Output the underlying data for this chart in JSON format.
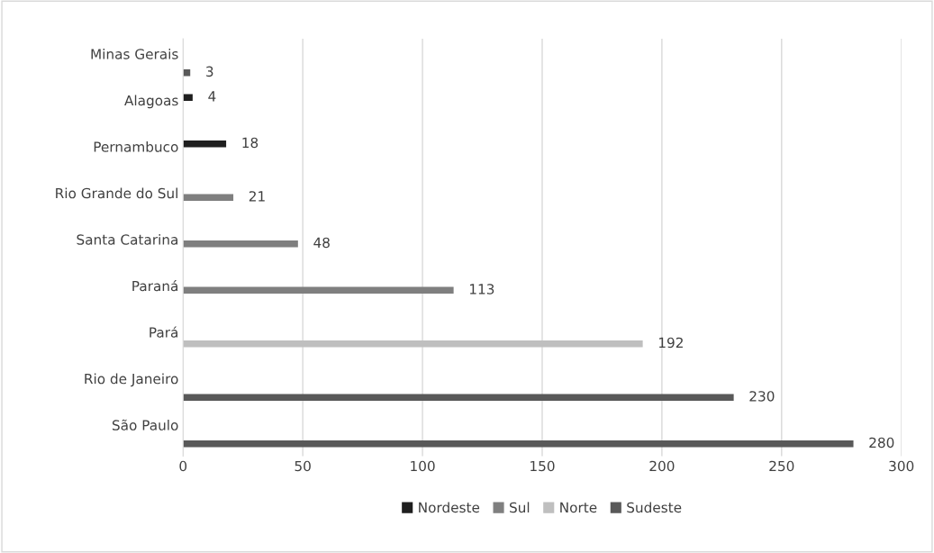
{
  "chart_data": {
    "type": "bar",
    "orientation": "horizontal",
    "categories": [
      "Minas Gerais",
      "Alagoas",
      "Pernambuco",
      "Rio Grande do Sul",
      "Santa Catarina",
      "Paraná",
      "Pará",
      "Rio de Janeiro",
      "São Paulo"
    ],
    "series": [
      {
        "name": "Nordeste",
        "color": "#1f1f1f",
        "values": [
          null,
          4,
          18,
          null,
          null,
          null,
          null,
          null,
          null
        ]
      },
      {
        "name": "Sul",
        "color": "#7f7f7f",
        "values": [
          null,
          null,
          null,
          21,
          48,
          113,
          null,
          null,
          null
        ]
      },
      {
        "name": "Norte",
        "color": "#bfbfbf",
        "values": [
          null,
          null,
          null,
          null,
          null,
          null,
          192,
          null,
          null
        ]
      },
      {
        "name": "Sudeste",
        "color": "#595959",
        "values": [
          3,
          null,
          null,
          null,
          null,
          null,
          null,
          230,
          280
        ]
      }
    ],
    "xlim": [
      0,
      300
    ],
    "xticks": [
      0,
      50,
      100,
      150,
      200,
      250,
      300
    ],
    "grid": "x",
    "legend": "bottom",
    "data_labels": true
  }
}
